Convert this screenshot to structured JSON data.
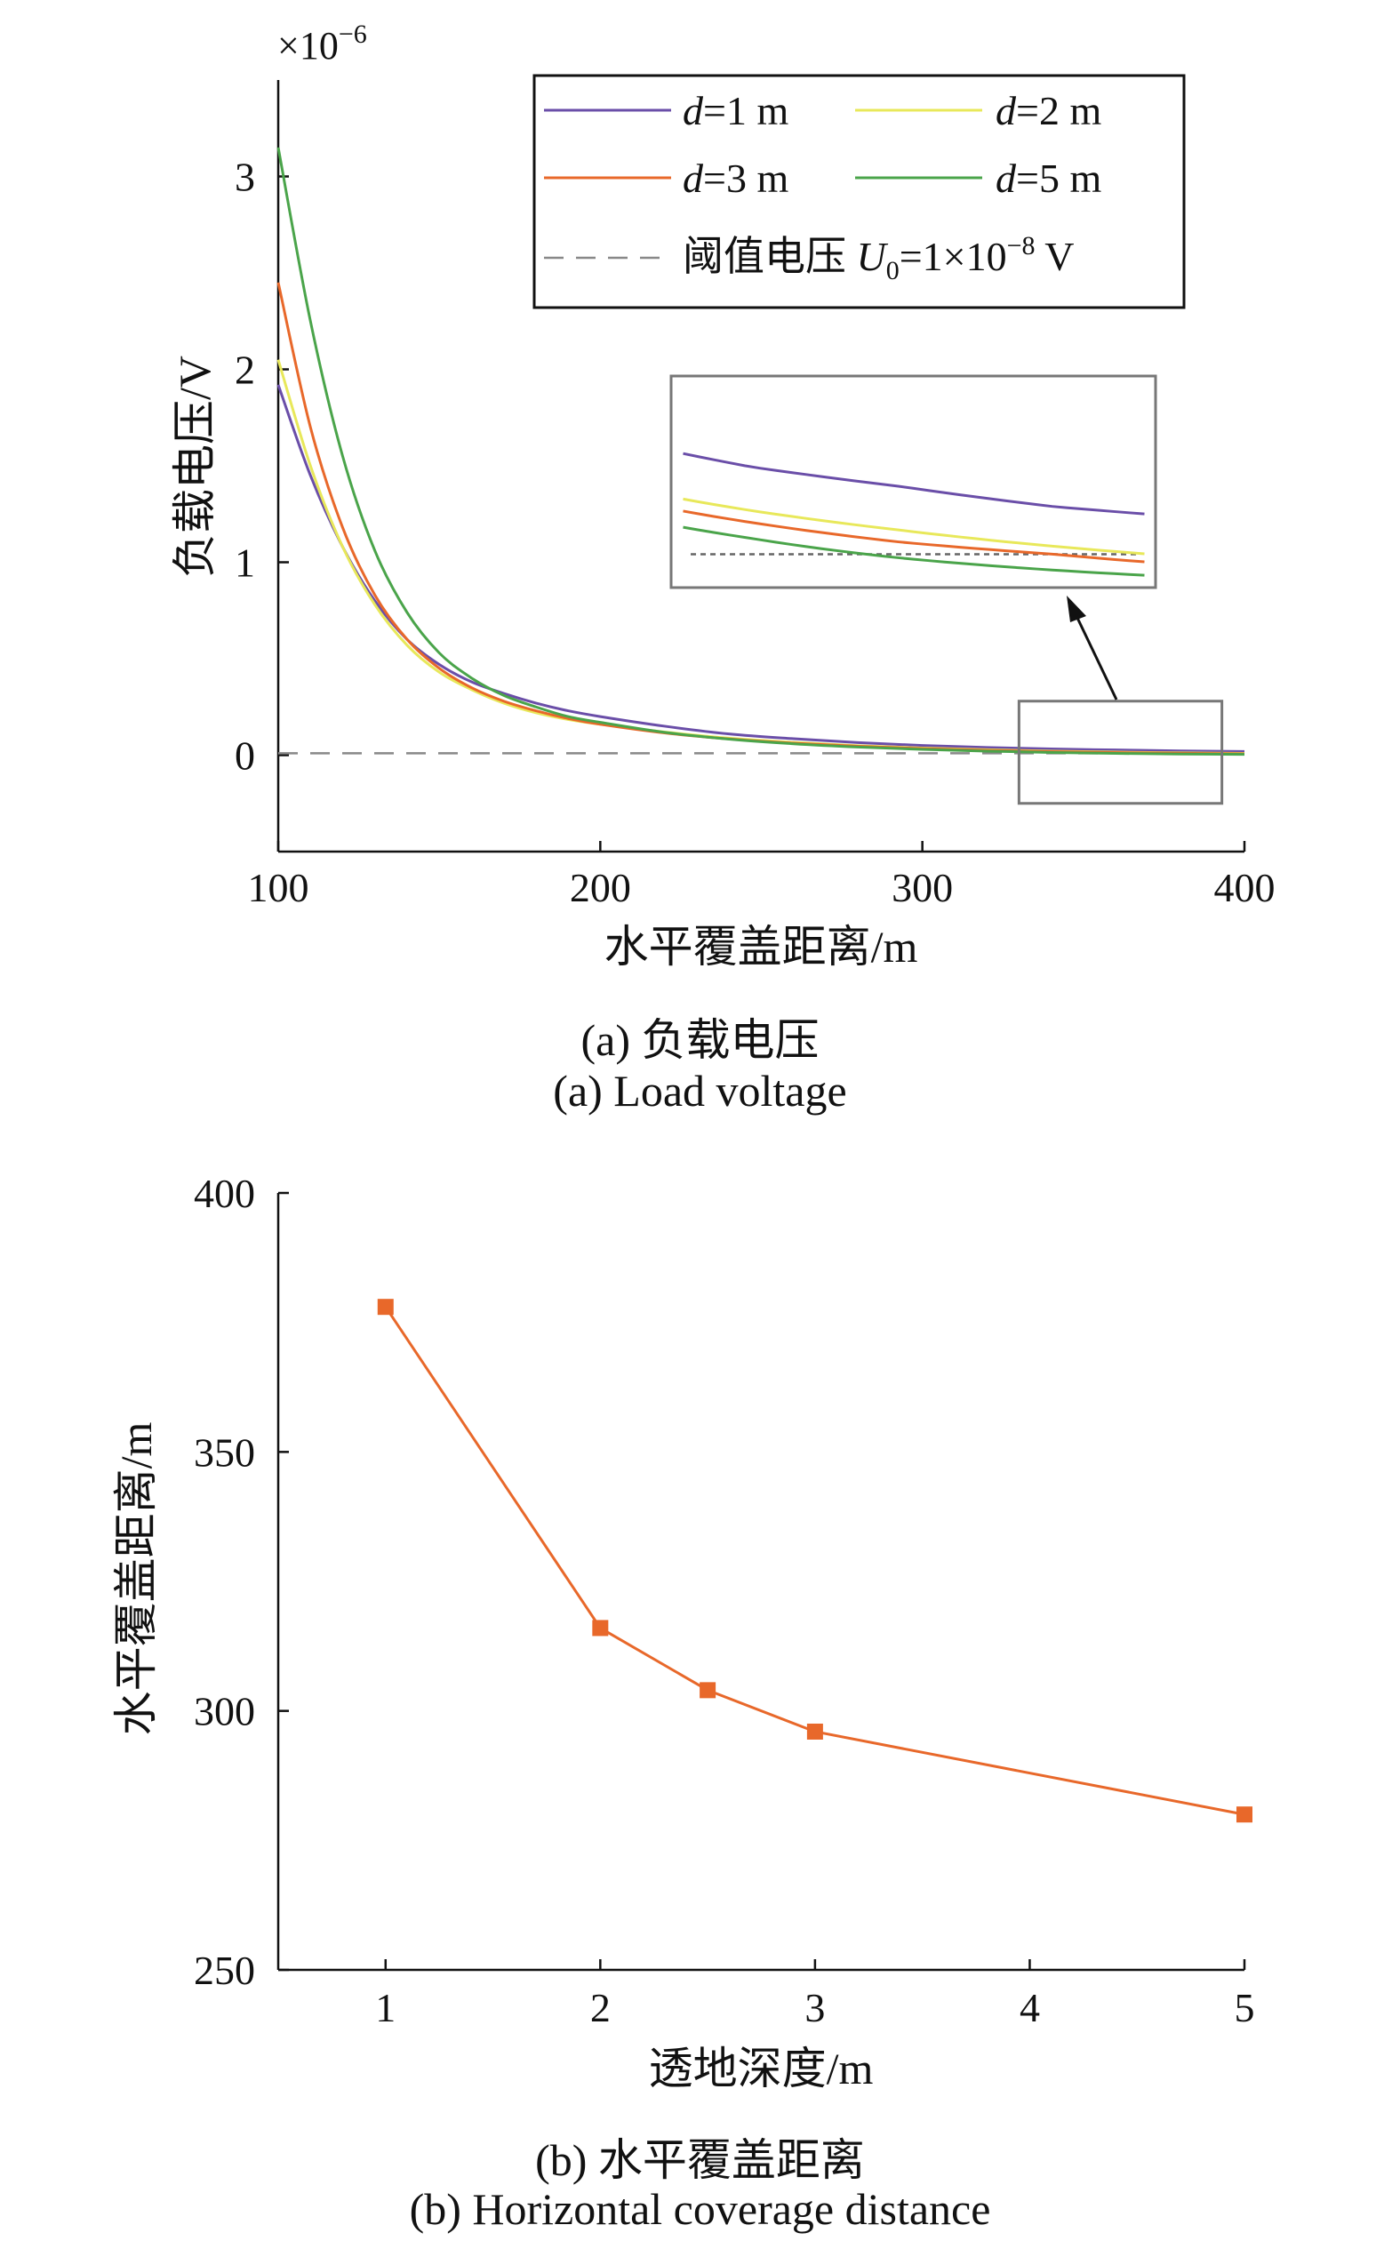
{
  "chart_data": [
    {
      "type": "line",
      "caption_cn": "(a) 负载电压",
      "caption_en": "(a) Load voltage",
      "xlabel": "水平覆盖距离/m",
      "ylabel": "负载电压/V",
      "y_multiplier": "×10",
      "y_multiplier_exp": "−6",
      "xlim": [
        100,
        400
      ],
      "ylim": [
        -0.5,
        3.5
      ],
      "xticks": [
        "100",
        "200",
        "300",
        "400"
      ],
      "yticks": [
        "0",
        "1",
        "2",
        "3"
      ],
      "x": [
        100,
        110,
        120,
        130,
        140,
        150,
        160,
        170,
        180,
        190,
        200,
        220,
        240,
        260,
        280,
        300,
        320,
        340,
        360,
        380,
        400
      ],
      "series": [
        {
          "name": "d=1 m",
          "d": "d",
          "rest": "=1 m",
          "color": "#6a4ea8",
          "values": [
            1.92,
            1.45,
            1.08,
            0.8,
            0.6,
            0.47,
            0.38,
            0.32,
            0.27,
            0.23,
            0.2,
            0.15,
            0.11,
            0.085,
            0.065,
            0.05,
            0.04,
            0.032,
            0.027,
            0.022,
            0.019
          ]
        },
        {
          "name": "d=2 m",
          "d": "d",
          "rest": "=2 m",
          "color": "#e8e85a",
          "values": [
            2.05,
            1.5,
            1.08,
            0.78,
            0.57,
            0.43,
            0.34,
            0.27,
            0.22,
            0.185,
            0.16,
            0.12,
            0.088,
            0.066,
            0.049,
            0.037,
            0.028,
            0.021,
            0.016,
            0.012,
            0.009
          ]
        },
        {
          "name": "d=3 m",
          "d": "d",
          "rest": "=3 m",
          "color": "#e8682a",
          "values": [
            2.45,
            1.7,
            1.18,
            0.83,
            0.6,
            0.45,
            0.35,
            0.28,
            0.23,
            0.19,
            0.16,
            0.115,
            0.084,
            0.062,
            0.046,
            0.034,
            0.025,
            0.018,
            0.013,
            0.01,
            0.007
          ]
        },
        {
          "name": "d=5 m",
          "d": "d",
          "rest": "=5 m",
          "color": "#4aa44a",
          "values": [
            3.15,
            2.25,
            1.55,
            1.06,
            0.74,
            0.53,
            0.4,
            0.31,
            0.25,
            0.2,
            0.17,
            0.118,
            0.083,
            0.059,
            0.042,
            0.03,
            0.021,
            0.014,
            0.009,
            0.006,
            0.004
          ]
        }
      ],
      "threshold": {
        "value": 0.01,
        "label_cn": "阈值电压",
        "label_u": "U",
        "label_sub": "0",
        "label_eq": "=1×10",
        "label_exp": "−8",
        "label_unit": " V",
        "color": "#888888"
      },
      "zoom_box": {
        "x": [
          330,
          393
        ],
        "y": [
          -0.25,
          0.28
        ]
      }
    },
    {
      "type": "line",
      "caption_cn": "(b) 水平覆盖距离",
      "caption_en": "(b) Horizontal coverage distance",
      "xlabel": "透地深度/m",
      "ylabel": "水平覆盖距离/m",
      "xlim": [
        0.5,
        5
      ],
      "ylim": [
        250,
        400
      ],
      "xticks": [
        "1",
        "2",
        "3",
        "4",
        "5"
      ],
      "yticks": [
        "250",
        "300",
        "350",
        "400"
      ],
      "color": "#e8682a",
      "x": [
        1,
        2,
        2.5,
        3,
        5
      ],
      "y": [
        378,
        316,
        304,
        296,
        280
      ]
    }
  ]
}
